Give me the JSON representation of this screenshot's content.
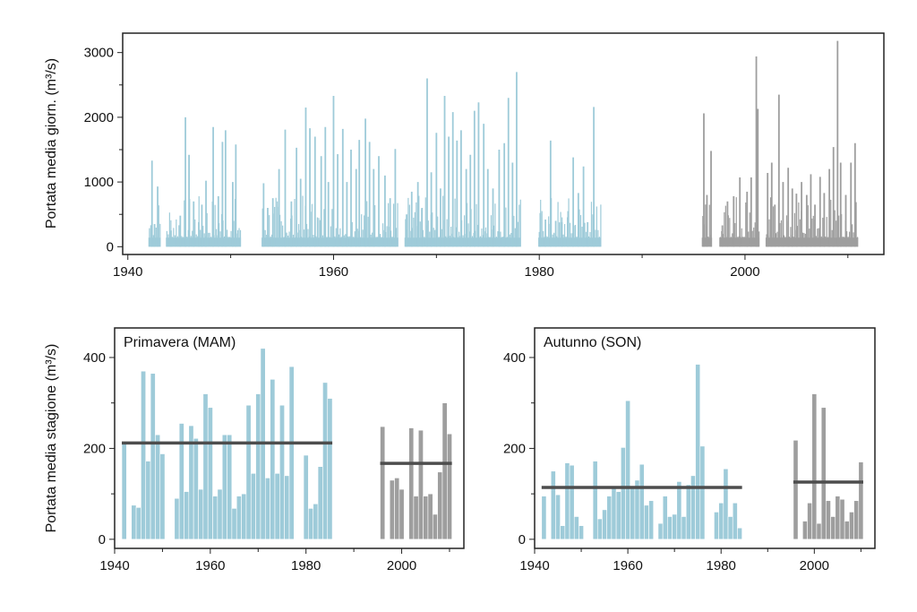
{
  "colors": {
    "historic": "#9ecbd9",
    "recent": "#9e9e9e",
    "mean_line": "#4d4d4d",
    "axis": "#222222"
  },
  "chart_data": [
    {
      "type": "bar",
      "title": "",
      "ylabel": "Portata media giorn. (m³/s)",
      "xlabel": "",
      "xlim": [
        1939.5,
        2013.5
      ],
      "ylim": [
        -120,
        3300
      ],
      "xticks": [
        1940,
        1960,
        1980,
        2000
      ],
      "yticks": [
        0,
        1000,
        2000,
        3000
      ],
      "grid": false,
      "series": [
        {
          "period": "historic",
          "segments": [
            [
              1942.0,
              1943.2
            ],
            [
              1943.7,
              1951.0
            ],
            [
              1953.0,
              1966.3
            ],
            [
              1966.9,
              1978.2
            ],
            [
              1979.9,
              1986.0
            ]
          ],
          "peaks": [
            [
              1942.35,
              1330
            ],
            [
              1942.6,
              350
            ],
            [
              1942.9,
              930
            ],
            [
              1944.2,
              250
            ],
            [
              1945.1,
              480
            ],
            [
              1945.6,
              2000
            ],
            [
              1945.95,
              1420
            ],
            [
              1946.4,
              700
            ],
            [
              1946.9,
              380
            ],
            [
              1947.2,
              650
            ],
            [
              1947.6,
              1020
            ],
            [
              1948.3,
              1850
            ],
            [
              1948.8,
              780
            ],
            [
              1949.2,
              1620
            ],
            [
              1949.5,
              1800
            ],
            [
              1950.2,
              1000
            ],
            [
              1950.5,
              1580
            ],
            [
              1953.2,
              980
            ],
            [
              1953.6,
              600
            ],
            [
              1954.1,
              750
            ],
            [
              1954.7,
              1200
            ],
            [
              1955.3,
              1810
            ],
            [
              1955.9,
              700
            ],
            [
              1956.4,
              1530
            ],
            [
              1956.8,
              1050
            ],
            [
              1957.3,
              2150
            ],
            [
              1957.7,
              1830
            ],
            [
              1958.2,
              1700
            ],
            [
              1958.8,
              1400
            ],
            [
              1959.2,
              1850
            ],
            [
              1959.5,
              1000
            ],
            [
              1960.0,
              2330
            ],
            [
              1960.4,
              1430
            ],
            [
              1960.9,
              1820
            ],
            [
              1961.3,
              1000
            ],
            [
              1961.7,
              1500
            ],
            [
              1962.2,
              1200
            ],
            [
              1962.5,
              1650
            ],
            [
              1963.1,
              1980
            ],
            [
              1963.5,
              1620
            ],
            [
              1963.9,
              1200
            ],
            [
              1964.4,
              1400
            ],
            [
              1965.0,
              1100
            ],
            [
              1965.5,
              750
            ],
            [
              1966.0,
              1510
            ],
            [
              1967.1,
              500
            ],
            [
              1967.6,
              850
            ],
            [
              1968.2,
              1000
            ],
            [
              1968.6,
              600
            ],
            [
              1969.1,
              2600
            ],
            [
              1969.5,
              1150
            ],
            [
              1970.0,
              1760
            ],
            [
              1970.4,
              900
            ],
            [
              1970.8,
              2330
            ],
            [
              1971.2,
              1700
            ],
            [
              1971.6,
              2080
            ],
            [
              1972.0,
              1640
            ],
            [
              1972.4,
              1800
            ],
            [
              1972.9,
              1200
            ],
            [
              1973.3,
              1420
            ],
            [
              1973.7,
              2100
            ],
            [
              1974.1,
              2230
            ],
            [
              1974.6,
              1900
            ],
            [
              1975.0,
              1200
            ],
            [
              1975.5,
              900
            ],
            [
              1976.1,
              1500
            ],
            [
              1976.6,
              1600
            ],
            [
              1977.0,
              2300
            ],
            [
              1977.4,
              1300
            ],
            [
              1977.8,
              2700
            ],
            [
              1980.1,
              520
            ],
            [
              1980.6,
              420
            ],
            [
              1981.1,
              1640
            ],
            [
              1981.6,
              400
            ],
            [
              1982.2,
              380
            ],
            [
              1982.8,
              550
            ],
            [
              1983.3,
              1380
            ],
            [
              1983.8,
              830
            ],
            [
              1984.3,
              1240
            ],
            [
              1984.7,
              380
            ],
            [
              1985.3,
              2160
            ]
          ]
        },
        {
          "period": "recent",
          "segments": [
            [
              1995.8,
              1996.8
            ],
            [
              1997.5,
              2001.4
            ],
            [
              2002.0,
              2011.0
            ]
          ],
          "peaks": [
            [
              1996.0,
              2060
            ],
            [
              1996.3,
              800
            ],
            [
              1996.7,
              1480
            ],
            [
              1997.8,
              330
            ],
            [
              1998.3,
              700
            ],
            [
              1998.9,
              780
            ],
            [
              1999.5,
              1070
            ],
            [
              2000.2,
              850
            ],
            [
              2000.6,
              1070
            ],
            [
              2001.1,
              2940
            ],
            [
              2001.25,
              2130
            ],
            [
              2002.2,
              1140
            ],
            [
              2002.6,
              1300
            ],
            [
              2002.9,
              650
            ],
            [
              2003.3,
              2350
            ],
            [
              2003.7,
              1000
            ],
            [
              2004.2,
              1220
            ],
            [
              2004.6,
              900
            ],
            [
              2005.0,
              820
            ],
            [
              2005.5,
              1000
            ],
            [
              2006.0,
              800
            ],
            [
              2006.4,
              1120
            ],
            [
              2006.8,
              650
            ],
            [
              2007.3,
              1080
            ],
            [
              2007.7,
              830
            ],
            [
              2008.2,
              1200
            ],
            [
              2008.6,
              1540
            ],
            [
              2009.0,
              3180
            ],
            [
              2009.3,
              1300
            ],
            [
              2009.8,
              800
            ],
            [
              2010.3,
              1300
            ],
            [
              2010.7,
              1600
            ]
          ]
        }
      ]
    },
    {
      "type": "bar",
      "title": "Primavera (MAM)",
      "ylabel": "Portata media stagione (m³/s)",
      "xlabel": "",
      "xlim": [
        1940,
        2013
      ],
      "ylim": [
        -20,
        465
      ],
      "xticks": [
        1940,
        1960,
        1980,
        2000
      ],
      "yticks": [
        0,
        200,
        400
      ],
      "grid": false,
      "series": [
        {
          "period": "historic",
          "start_year": 1942,
          "values": [
            215,
            0,
            75,
            70,
            370,
            172,
            365,
            230,
            188,
            0,
            0,
            90,
            255,
            105,
            250,
            222,
            110,
            320,
            290,
            95,
            110,
            230,
            230,
            68,
            95,
            100,
            295,
            145,
            320,
            420,
            135,
            352,
            145,
            295,
            140,
            380,
            0,
            0,
            185,
            68,
            78,
            160,
            345,
            310
          ],
          "mean": 212
        },
        {
          "period": "recent",
          "start_year": 1996,
          "values": [
            248,
            0,
            130,
            135,
            110,
            0,
            245,
            95,
            240,
            95,
            100,
            55,
            148,
            300,
            232
          ],
          "mean": 167
        }
      ]
    },
    {
      "type": "bar",
      "title": "Autunno (SON)",
      "ylabel": "",
      "xlabel": "",
      "xlim": [
        1940,
        2013
      ],
      "ylim": [
        -20,
        465
      ],
      "xticks": [
        1940,
        1960,
        1980,
        2000
      ],
      "yticks": [
        0,
        200,
        400
      ],
      "grid": false,
      "series": [
        {
          "period": "historic",
          "start_year": 1942,
          "values": [
            95,
            0,
            150,
            98,
            30,
            168,
            163,
            50,
            30,
            0,
            0,
            172,
            45,
            65,
            95,
            112,
            105,
            202,
            305,
            115,
            130,
            165,
            75,
            85,
            0,
            35,
            95,
            50,
            55,
            127,
            50,
            120,
            140,
            385,
            205,
            0,
            0,
            60,
            80,
            155,
            50,
            80,
            25
          ],
          "mean": 114
        },
        {
          "period": "recent",
          "start_year": 1996,
          "values": [
            218,
            0,
            40,
            80,
            320,
            35,
            290,
            85,
            50,
            95,
            88,
            40,
            60,
            85,
            170
          ],
          "mean": 126
        }
      ]
    }
  ]
}
